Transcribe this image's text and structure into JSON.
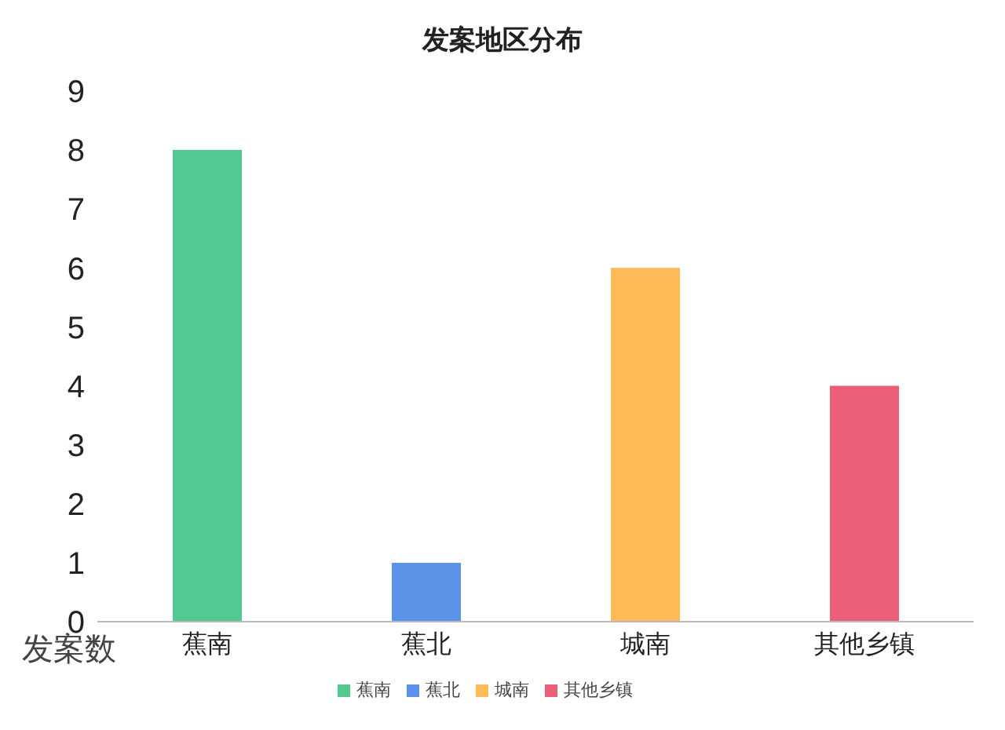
{
  "chart_data": {
    "type": "bar",
    "title": "发案地区分布",
    "ylabel": "发案数",
    "categories": [
      "蕉南",
      "蕉北",
      "城南",
      "其他乡镇"
    ],
    "stacked": true,
    "series": [
      {
        "name": "蕉南",
        "color": "#52c98f",
        "values": [
          8,
          null,
          null,
          null
        ]
      },
      {
        "name": "蕉北",
        "color": "#5b93e8",
        "values": [
          null,
          1,
          null,
          null
        ]
      },
      {
        "name": "城南",
        "color": "#ffb957",
        "values": [
          null,
          null,
          6,
          null
        ]
      },
      {
        "name": "其他乡镇",
        "color": "#ea5f78",
        "values": [
          null,
          null,
          null,
          4
        ]
      }
    ],
    "ylim": [
      0,
      9
    ],
    "yticks": [
      0,
      1,
      2,
      3,
      4,
      5,
      6,
      7,
      8,
      9
    ],
    "legend": "bottom"
  }
}
